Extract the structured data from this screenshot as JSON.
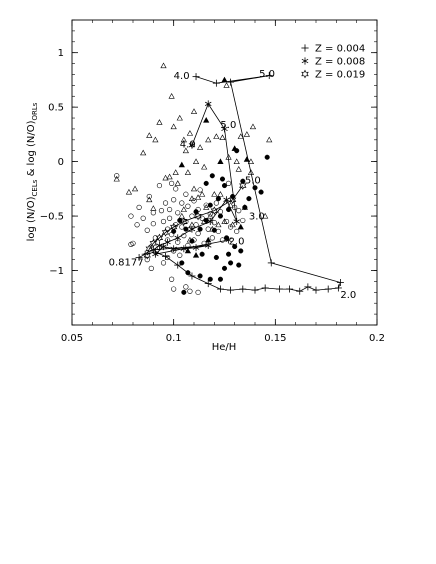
{
  "chart_data": {
    "type": "scatter",
    "xlabel": "He/H",
    "ylabel_parts": [
      "log (N/O)",
      "CELs",
      " & log (N/O)",
      "ORLs"
    ],
    "xlim": [
      0.05,
      0.2
    ],
    "ylim": [
      -1.5,
      1.3
    ],
    "xticks": [
      0.05,
      0.1,
      0.15,
      0.2
    ],
    "xtick_labels": [
      "0.05",
      "0.1",
      "0.15",
      "0.2"
    ],
    "yticks": [
      -1,
      -0.5,
      0,
      0.5,
      1
    ],
    "ytick_labels": [
      "−1",
      "−0.5",
      "0",
      "0.5",
      "1"
    ],
    "legend_position": "top-right",
    "legend": [
      {
        "marker": "plus",
        "label": "Z = 0.004"
      },
      {
        "marker": "asterisk",
        "label": "Z = 0.008"
      },
      {
        "marker": "star",
        "label": "Z = 0.019"
      }
    ],
    "model_tracks": [
      {
        "marker": "plus",
        "points": [
          [
            0.111,
            0.78
          ],
          [
            0.121,
            0.72
          ],
          [
            0.147,
            0.79
          ],
          [
            0.128,
            0.73
          ],
          [
            0.148,
            -0.93
          ],
          [
            0.182,
            -1.11
          ],
          [
            0.181,
            -1.16
          ],
          [
            0.176,
            -1.17
          ],
          [
            0.17,
            -1.18
          ],
          [
            0.166,
            -1.15
          ],
          [
            0.162,
            -1.19
          ],
          [
            0.157,
            -1.17
          ],
          [
            0.152,
            -1.17
          ],
          [
            0.145,
            -1.16
          ],
          [
            0.14,
            -1.18
          ],
          [
            0.134,
            -1.17
          ],
          [
            0.128,
            -1.18
          ],
          [
            0.123,
            -1.17
          ],
          [
            0.117,
            -1.12
          ],
          [
            0.109,
            -1.05
          ],
          [
            0.102,
            -0.95
          ],
          [
            0.096,
            -0.87
          ],
          [
            0.091,
            -0.83
          ],
          [
            0.086,
            -0.85
          ],
          [
            0.083,
            -0.88
          ]
        ]
      },
      {
        "marker": "asterisk",
        "points": [
          [
            0.109,
            0.15
          ],
          [
            0.117,
            0.53
          ],
          [
            0.125,
            0.3
          ],
          [
            0.131,
            -0.55
          ],
          [
            0.126,
            -0.35
          ],
          [
            0.118,
            -0.55
          ],
          [
            0.109,
            -0.62
          ],
          [
            0.102,
            -0.7
          ],
          [
            0.097,
            -0.74
          ],
          [
            0.093,
            -0.77
          ],
          [
            0.09,
            -0.81
          ],
          [
            0.117,
            -0.77
          ],
          [
            0.111,
            -0.79
          ],
          [
            0.105,
            -0.8
          ],
          [
            0.1,
            -0.8
          ],
          [
            0.095,
            -0.78
          ],
          [
            0.091,
            -0.85
          ],
          [
            0.127,
            -0.72
          ]
        ]
      },
      {
        "marker": "star",
        "points": [
          [
            0.134,
            -0.22
          ],
          [
            0.129,
            -0.35
          ],
          [
            0.12,
            -0.45
          ],
          [
            0.112,
            -0.5
          ],
          [
            0.105,
            -0.55
          ],
          [
            0.1,
            -0.6
          ],
          [
            0.096,
            -0.65
          ],
          [
            0.093,
            -0.7
          ],
          [
            0.09,
            -0.75
          ],
          [
            0.088,
            -0.8
          ],
          [
            0.087,
            -0.86
          ]
        ]
      }
    ],
    "annotations": [
      {
        "text": "4.0",
        "x": 0.1,
        "y": 0.79
      },
      {
        "text": "5.0",
        "x": 0.142,
        "y": 0.81
      },
      {
        "text": "5.0",
        "x": 0.123,
        "y": 0.34
      },
      {
        "text": "4.0",
        "x": 0.103,
        "y": 0.16
      },
      {
        "text": "5.0",
        "x": 0.135,
        "y": -0.17
      },
      {
        "text": "3.0",
        "x": 0.137,
        "y": -0.5
      },
      {
        "text": "2.0",
        "x": 0.127,
        "y": -0.73
      },
      {
        "text": "0.8177",
        "x": 0.068,
        "y": -0.92
      },
      {
        "text": "2.0",
        "x": 0.182,
        "y": -1.22
      }
    ],
    "observed": {
      "open_circle": [
        [
          0.072,
          -0.13
        ],
        [
          0.079,
          -0.5
        ],
        [
          0.079,
          -0.76
        ],
        [
          0.08,
          -0.75
        ],
        [
          0.082,
          -0.58
        ],
        [
          0.083,
          -0.42
        ],
        [
          0.085,
          -0.52
        ],
        [
          0.087,
          -0.63
        ],
        [
          0.088,
          -0.32
        ],
        [
          0.09,
          -0.47
        ],
        [
          0.09,
          -0.57
        ],
        [
          0.091,
          -0.7
        ],
        [
          0.093,
          -0.79
        ],
        [
          0.093,
          -0.22
        ],
        [
          0.094,
          -0.45
        ],
        [
          0.095,
          -0.55
        ],
        [
          0.096,
          -0.38
        ],
        [
          0.097,
          -0.62
        ],
        [
          0.097,
          -0.72
        ],
        [
          0.098,
          -0.44
        ],
        [
          0.098,
          -0.52
        ],
        [
          0.099,
          -0.2
        ],
        [
          0.099,
          -0.67
        ],
        [
          0.1,
          -0.82
        ],
        [
          0.1,
          -0.35
        ],
        [
          0.101,
          -0.58
        ],
        [
          0.101,
          -0.25
        ],
        [
          0.102,
          -0.74
        ],
        [
          0.102,
          -0.47
        ],
        [
          0.103,
          -0.86
        ],
        [
          0.104,
          -0.6
        ],
        [
          0.104,
          -0.38
        ],
        [
          0.105,
          -0.68
        ],
        [
          0.106,
          -0.55
        ],
        [
          0.106,
          -0.3
        ],
        [
          0.107,
          -0.41
        ],
        [
          0.107,
          -0.77
        ],
        [
          0.108,
          -0.62
        ],
        [
          0.109,
          -0.5
        ],
        [
          0.11,
          -0.36
        ],
        [
          0.11,
          -0.72
        ],
        [
          0.111,
          -0.58
        ],
        [
          0.112,
          -0.44
        ],
        [
          0.112,
          -0.66
        ],
        [
          0.113,
          -0.26
        ],
        [
          0.114,
          -0.52
        ],
        [
          0.115,
          -0.75
        ],
        [
          0.116,
          -0.4
        ],
        [
          0.117,
          -0.62
        ],
        [
          0.118,
          -0.48
        ],
        [
          0.119,
          -0.7
        ],
        [
          0.12,
          -0.56
        ],
        [
          0.121,
          -0.38
        ],
        [
          0.122,
          -0.64
        ],
        [
          0.123,
          -0.46
        ],
        [
          0.124,
          -0.72
        ],
        [
          0.126,
          -0.55
        ],
        [
          0.127,
          -0.2
        ],
        [
          0.128,
          -0.6
        ],
        [
          0.13,
          -0.42
        ],
        [
          0.131,
          -0.64
        ],
        [
          0.132,
          -0.45
        ],
        [
          0.134,
          -0.54
        ],
        [
          0.099,
          -1.08
        ],
        [
          0.1,
          -1.17
        ],
        [
          0.106,
          -1.15
        ],
        [
          0.108,
          -1.19
        ],
        [
          0.112,
          -1.2
        ],
        [
          0.095,
          -0.93
        ],
        [
          0.089,
          -0.98
        ],
        [
          0.097,
          -0.88
        ],
        [
          0.087,
          -0.9
        ]
      ],
      "filled_circle": [
        [
          0.1,
          -0.64
        ],
        [
          0.103,
          -0.54
        ],
        [
          0.106,
          -0.62
        ],
        [
          0.109,
          -0.73
        ],
        [
          0.111,
          -0.46
        ],
        [
          0.113,
          -0.62
        ],
        [
          0.114,
          -0.85
        ],
        [
          0.116,
          -0.2
        ],
        [
          0.116,
          -0.54
        ],
        [
          0.118,
          -0.4
        ],
        [
          0.119,
          -0.13
        ],
        [
          0.12,
          -0.63
        ],
        [
          0.121,
          -0.88
        ],
        [
          0.122,
          -0.34
        ],
        [
          0.123,
          -0.5
        ],
        [
          0.124,
          -0.16
        ],
        [
          0.125,
          -0.22
        ],
        [
          0.126,
          -0.7
        ],
        [
          0.127,
          -0.44
        ],
        [
          0.128,
          -0.93
        ],
        [
          0.129,
          -0.32
        ],
        [
          0.13,
          -0.78
        ],
        [
          0.131,
          0.1
        ],
        [
          0.132,
          -0.95
        ],
        [
          0.134,
          -0.18
        ],
        [
          0.135,
          -0.42
        ],
        [
          0.137,
          -0.34
        ],
        [
          0.14,
          -0.24
        ],
        [
          0.143,
          -0.28
        ],
        [
          0.146,
          0.04
        ],
        [
          0.104,
          -0.93
        ],
        [
          0.107,
          -1.02
        ],
        [
          0.113,
          -1.05
        ],
        [
          0.118,
          -1.08
        ],
        [
          0.123,
          -1.08
        ],
        [
          0.127,
          -0.85
        ],
        [
          0.125,
          -0.98
        ],
        [
          0.105,
          -1.2
        ],
        [
          0.133,
          -0.82
        ]
      ],
      "open_triangle": [
        [
          0.072,
          -0.16
        ],
        [
          0.078,
          -0.28
        ],
        [
          0.081,
          -0.25
        ],
        [
          0.085,
          0.08
        ],
        [
          0.088,
          0.24
        ],
        [
          0.09,
          -0.43
        ],
        [
          0.093,
          0.36
        ],
        [
          0.096,
          -0.15
        ],
        [
          0.098,
          -0.14
        ],
        [
          0.099,
          0.6
        ],
        [
          0.1,
          0.32
        ],
        [
          0.101,
          -0.1
        ],
        [
          0.102,
          -0.2
        ],
        [
          0.103,
          0.4
        ],
        [
          0.104,
          -0.5
        ],
        [
          0.105,
          0.2
        ],
        [
          0.105,
          -0.44
        ],
        [
          0.106,
          0.1
        ],
        [
          0.107,
          -0.1
        ],
        [
          0.108,
          0.26
        ],
        [
          0.108,
          -0.72
        ],
        [
          0.109,
          -0.34
        ],
        [
          0.11,
          0.46
        ],
        [
          0.11,
          -0.25
        ],
        [
          0.111,
          0.0
        ],
        [
          0.112,
          -0.33
        ],
        [
          0.113,
          0.13
        ],
        [
          0.114,
          -0.3
        ],
        [
          0.115,
          -0.05
        ],
        [
          0.116,
          -0.42
        ],
        [
          0.117,
          0.2
        ],
        [
          0.118,
          -0.5
        ],
        [
          0.119,
          -0.62
        ],
        [
          0.12,
          -0.3
        ],
        [
          0.121,
          0.23
        ],
        [
          0.122,
          -0.58
        ],
        [
          0.123,
          -0.3
        ],
        [
          0.124,
          0.22
        ],
        [
          0.125,
          -0.55
        ],
        [
          0.126,
          0.7
        ],
        [
          0.127,
          0.04
        ],
        [
          0.128,
          -0.4
        ],
        [
          0.129,
          -0.58
        ],
        [
          0.131,
          0.0
        ],
        [
          0.132,
          -0.07
        ],
        [
          0.133,
          0.23
        ],
        [
          0.135,
          -0.42
        ],
        [
          0.136,
          0.25
        ],
        [
          0.138,
          -0.1
        ],
        [
          0.138,
          0.0
        ],
        [
          0.139,
          0.32
        ],
        [
          0.145,
          -0.5
        ],
        [
          0.147,
          0.2
        ],
        [
          0.095,
          0.88
        ],
        [
          0.088,
          -0.35
        ],
        [
          0.091,
          0.2
        ],
        [
          0.115,
          -0.55
        ],
        [
          0.109,
          -0.58
        ]
      ],
      "filled_triangle": [
        [
          0.116,
          0.38
        ],
        [
          0.123,
          0.0
        ],
        [
          0.125,
          0.75
        ],
        [
          0.13,
          0.12
        ],
        [
          0.136,
          0.02
        ],
        [
          0.104,
          -0.03
        ],
        [
          0.107,
          -0.82
        ],
        [
          0.117,
          -0.72
        ],
        [
          0.133,
          -0.6
        ],
        [
          0.111,
          -0.86
        ]
      ]
    }
  }
}
